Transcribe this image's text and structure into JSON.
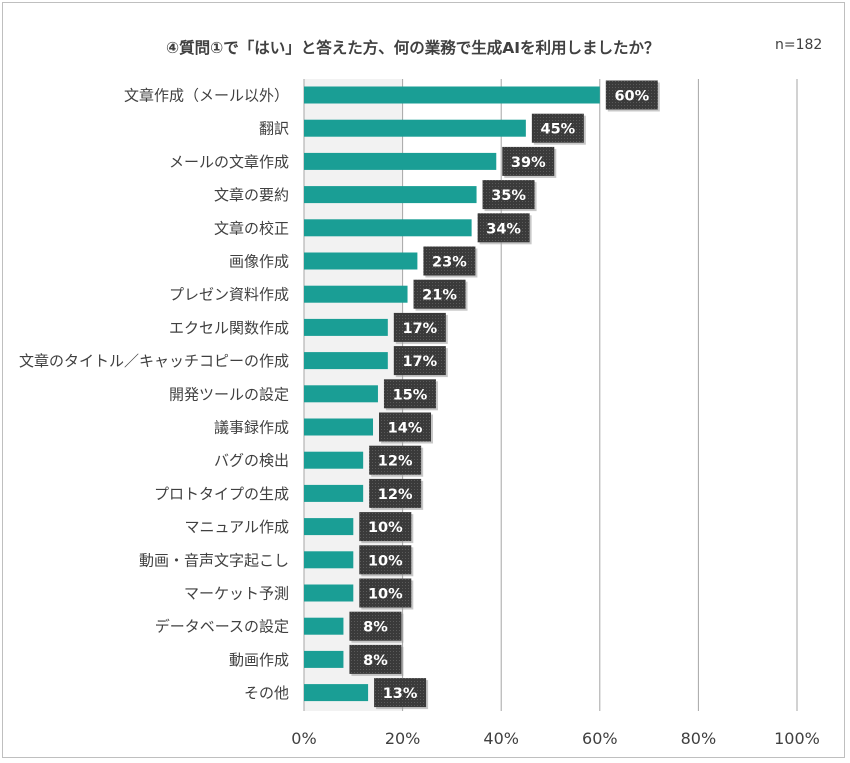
{
  "chart_data": {
    "type": "bar",
    "orientation": "horizontal",
    "title": "④質問①で「はい」と答えた方、何の業務で生成AIを利用しましたか？",
    "sample_size": "n=182",
    "categories": [
      "文章作成（メール以外）",
      "翻訳",
      "メールの文章作成",
      "文章の要約",
      "文章の校正",
      "画像作成",
      "プレゼン資料作成",
      "エクセル関数作成",
      "文章のタイトル／キャッチコピーの作成",
      "開発ツールの設定",
      "議事録作成",
      "バグの検出",
      "プロトタイプの生成",
      "マニュアル作成",
      "動画・音声文字起こし",
      "マーケット予測",
      "データベースの設定",
      "動画作成",
      "その他"
    ],
    "values": [
      60,
      45,
      39,
      35,
      34,
      23,
      21,
      17,
      17,
      15,
      14,
      12,
      12,
      10,
      10,
      10,
      8,
      8,
      13
    ],
    "value_labels": [
      "60%",
      "45%",
      "39%",
      "35%",
      "34%",
      "23%",
      "21%",
      "17%",
      "17%",
      "15%",
      "14%",
      "12%",
      "12%",
      "10%",
      "10%",
      "10%",
      "8%",
      "8%",
      "13%"
    ],
    "xlim": [
      0,
      100
    ],
    "xticks": [
      0,
      20,
      40,
      60,
      80,
      100
    ],
    "xtick_labels": [
      "0%",
      "20%",
      "40%",
      "60%",
      "80%",
      "100%"
    ],
    "grid": "vertical",
    "legend": "none",
    "colors": {
      "bar": "#1a9e95",
      "label_box": "#3a3a3a",
      "gridline": "#a6a6a6",
      "text": "#404040"
    }
  }
}
